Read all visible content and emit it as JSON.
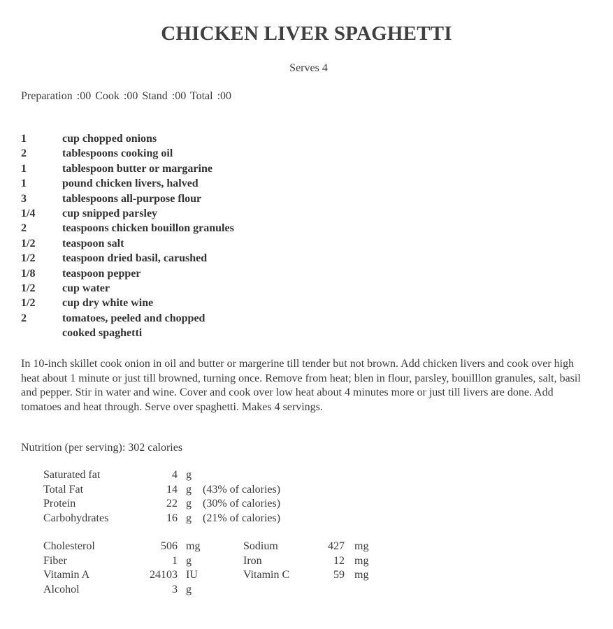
{
  "title": "CHICKEN LIVER SPAGHETTI",
  "serves": "Serves  4",
  "times": "Preparation  :00    Cook  :00    Stand  :00    Total  :00",
  "ingredients": [
    {
      "qty": "1",
      "text": "cup chopped onions"
    },
    {
      "qty": "2",
      "text": "tablespoons cooking oil"
    },
    {
      "qty": "1",
      "text": "tablespoon butter or margarine"
    },
    {
      "qty": "1",
      "text": "pound chicken livers, halved"
    },
    {
      "qty": "3",
      "text": "tablespoons all-purpose flour"
    },
    {
      "qty": "1/4",
      "text": "cup snipped parsley"
    },
    {
      "qty": "2",
      "text": "teaspoons chicken bouillon granules"
    },
    {
      "qty": "1/2",
      "text": "teaspoon salt"
    },
    {
      "qty": "1/2",
      "text": "teaspoon dried basil, carushed"
    },
    {
      "qty": "1/8",
      "text": "teaspoon pepper"
    },
    {
      "qty": "1/2",
      "text": "cup water"
    },
    {
      "qty": "1/2",
      "text": "cup dry white wine"
    },
    {
      "qty": "2",
      "text": "tomatoes, peeled and chopped"
    },
    {
      "qty": "",
      "text": "cooked spaghetti"
    }
  ],
  "directions": "In 10-inch skillet cook onion in oil and butter or margerine till tender but not brown.  Add chicken livers and cook over high heat about 1 minute or just till browned, turning once.  Remove from heat; blen in flour, parsley, bouilllon granules, salt, basil and pepper.  Stir in water and wine.  Cover and cook over low heat about 4 minutes more or just till livers are done.  Add tomatoes and heat through.  Serve over spaghetti.  Makes 4 servings.",
  "nutrition": {
    "heading": "Nutrition (per serving):  302 calories",
    "macros": [
      {
        "label": "Saturated fat",
        "value": "4",
        "unit": "g",
        "pct": ""
      },
      {
        "label": "Total Fat",
        "value": "14",
        "unit": "g",
        "pct": "(43% of calories)"
      },
      {
        "label": "Protein",
        "value": "22",
        "unit": "g",
        "pct": "(30% of calories)"
      },
      {
        "label": "Carbohydrates",
        "value": "16",
        "unit": "g",
        "pct": "(21% of calories)"
      }
    ],
    "left": [
      {
        "label": "Cholesterol",
        "value": "506",
        "unit": "mg"
      },
      {
        "label": "Fiber",
        "value": "1",
        "unit": "g"
      },
      {
        "label": "Vitamin A",
        "value": "24103",
        "unit": "IU"
      },
      {
        "label": "Alcohol",
        "value": "3",
        "unit": "g"
      }
    ],
    "right": [
      {
        "label": "Sodium",
        "value": "427",
        "unit": "mg"
      },
      {
        "label": "Iron",
        "value": "12",
        "unit": "mg"
      },
      {
        "label": "Vitamin C",
        "value": "59",
        "unit": "mg"
      }
    ]
  }
}
